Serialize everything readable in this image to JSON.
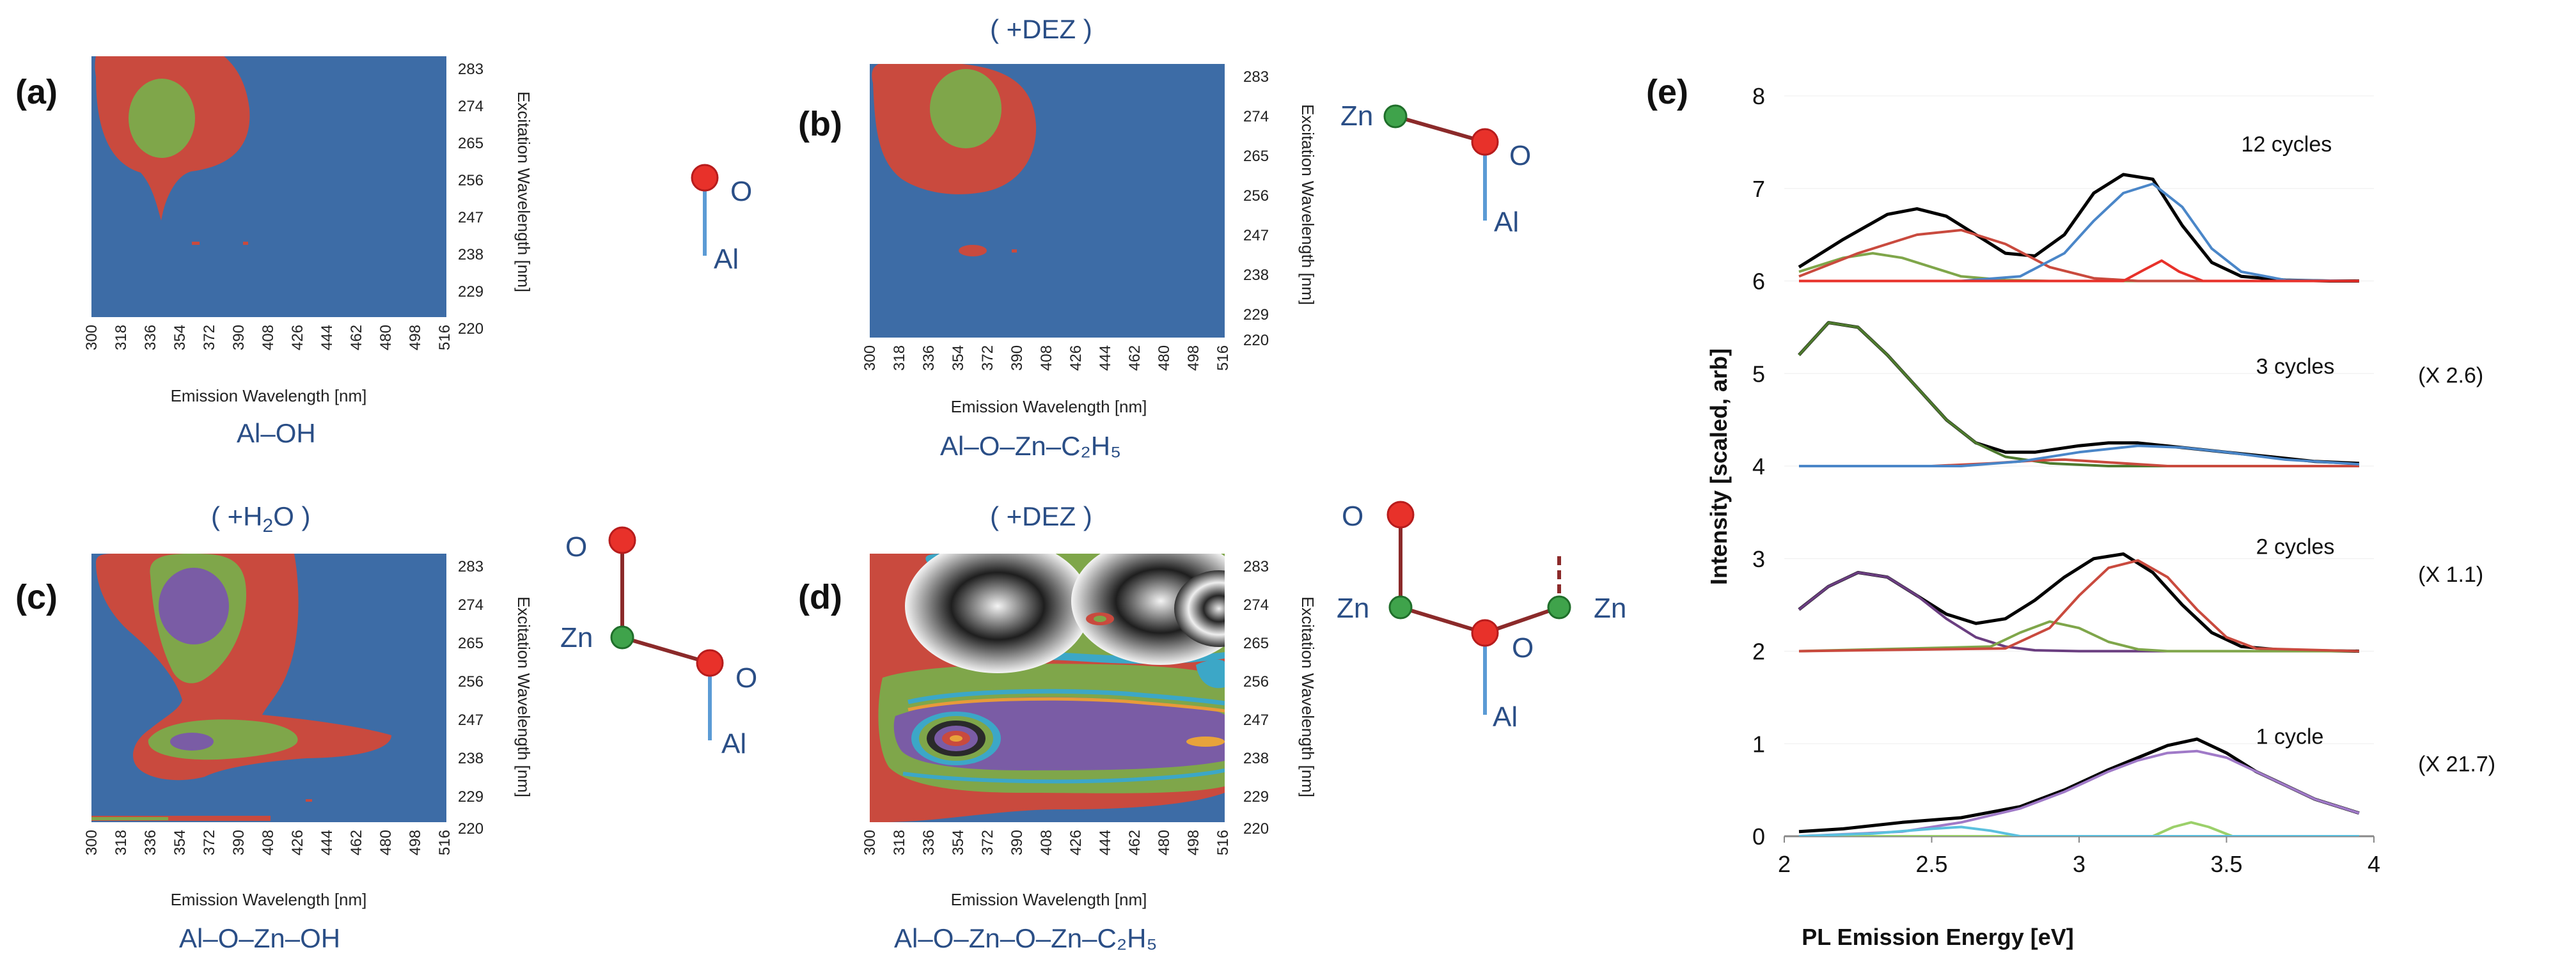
{
  "panels": [
    {
      "id": "a",
      "label": "(a)",
      "header": "",
      "header_sub": "",
      "header_end": "",
      "caption": "Al–OH",
      "atoms": [
        "O",
        "Al"
      ]
    },
    {
      "id": "b",
      "label": "(b)",
      "header": "( +DEZ )",
      "header_sub": "",
      "header_end": "",
      "caption": "Al–O–Zn–C₂H₅",
      "atoms": [
        "Zn",
        "O",
        "Al"
      ]
    },
    {
      "id": "c",
      "label": "(c)",
      "header": "( +H",
      "header_sub": "2",
      "header_end": "O )",
      "caption": "Al–O–Zn–OH",
      "atoms": [
        "O",
        "Zn",
        "O",
        "Al"
      ]
    },
    {
      "id": "d",
      "label": "(d)",
      "header": "( +DEZ )",
      "header_sub": "",
      "header_end": "",
      "caption": "Al–O–Zn–O–Zn–C₂H₅",
      "atoms": [
        "O",
        "Zn",
        "O",
        "Al",
        "Zn"
      ]
    }
  ],
  "heatmap_axes": {
    "x_label": "Emission Wavelength [nm]",
    "y_label": "Excitation Wavelength [nm]",
    "x_ticks": [
      "300",
      "318",
      "336",
      "354",
      "372",
      "390",
      "408",
      "426",
      "444",
      "462",
      "480",
      "498",
      "516"
    ],
    "y_ticks": [
      "283",
      "274",
      "265",
      "256",
      "247",
      "238",
      "229",
      "220"
    ]
  },
  "colors": {
    "bg": "#3d6ca6",
    "red": "#c94a3e",
    "green": "#7fa64a",
    "purple": "#7a5ca5",
    "atom_red": "#e8312a",
    "atom_green": "#3fa34b",
    "bond": "#8b2a2a",
    "bond_al": "#5b9bd5"
  },
  "chart_data": {
    "type": "line",
    "panel_label": "(e)",
    "xlabel": "PL Emission Energy [eV]",
    "ylabel": "Intensity [scaled, arb]",
    "xlim": [
      2,
      4
    ],
    "ylim": [
      0,
      8
    ],
    "x_ticks": [
      "2",
      "2.5",
      "3",
      "3.5",
      "4"
    ],
    "y_ticks": [
      "0",
      "1",
      "2",
      "3",
      "4",
      "5",
      "6",
      "7",
      "8"
    ],
    "annotations": [
      {
        "text": "12 cycles",
        "x": 3.55,
        "y": 7.4
      },
      {
        "text": "3 cycles",
        "x": 3.6,
        "y": 5.0
      },
      {
        "text": "(X 2.6)",
        "x": 4.15,
        "y": 4.9
      },
      {
        "text": "2 cycles",
        "x": 3.6,
        "y": 3.05
      },
      {
        "text": "(X 1.1)",
        "x": 4.15,
        "y": 2.75
      },
      {
        "text": "1 cycle",
        "x": 3.6,
        "y": 1.0
      },
      {
        "text": "(X 21.7)",
        "x": 4.15,
        "y": 0.7
      }
    ],
    "series": [
      {
        "name": "12 cycles total",
        "color": "#000000",
        "x": [
          2.05,
          2.2,
          2.35,
          2.45,
          2.55,
          2.65,
          2.75,
          2.85,
          2.95,
          3.05,
          3.15,
          3.25,
          3.35,
          3.45,
          3.55,
          3.7,
          3.85,
          3.95
        ],
        "y": [
          6.15,
          6.45,
          6.72,
          6.78,
          6.7,
          6.5,
          6.3,
          6.27,
          6.5,
          6.95,
          7.15,
          7.1,
          6.6,
          6.2,
          6.05,
          6.01,
          6.0,
          6.0
        ]
      },
      {
        "name": "12 cycles green",
        "color": "#7fa64a",
        "x": [
          2.05,
          2.2,
          2.3,
          2.4,
          2.5,
          2.6,
          2.75,
          2.9,
          3.1,
          3.95
        ],
        "y": [
          6.1,
          6.25,
          6.3,
          6.25,
          6.15,
          6.05,
          6.01,
          6.0,
          6.0,
          6.0
        ]
      },
      {
        "name": "12 cycles red",
        "color": "#c94a3e",
        "x": [
          2.05,
          2.25,
          2.45,
          2.6,
          2.75,
          2.9,
          3.05,
          3.2,
          3.95
        ],
        "y": [
          6.05,
          6.3,
          6.5,
          6.55,
          6.4,
          6.15,
          6.03,
          6.0,
          6.0
        ]
      },
      {
        "name": "12 cycles blue",
        "color": "#4a86c8",
        "x": [
          2.6,
          2.8,
          2.95,
          3.05,
          3.15,
          3.25,
          3.35,
          3.45,
          3.55,
          3.7,
          3.95
        ],
        "y": [
          6.0,
          6.05,
          6.3,
          6.65,
          6.95,
          7.05,
          6.8,
          6.35,
          6.1,
          6.01,
          6.0
        ]
      },
      {
        "name": "12 cycles red narrow",
        "color": "#e8312a",
        "x": [
          2.05,
          3.15,
          3.22,
          3.28,
          3.34,
          3.42,
          3.95
        ],
        "y": [
          6.0,
          6.0,
          6.12,
          6.22,
          6.1,
          6.0,
          6.0
        ]
      },
      {
        "name": "3 cycles total",
        "color": "#000000",
        "x": [
          2.05,
          2.15,
          2.25,
          2.35,
          2.45,
          2.55,
          2.65,
          2.75,
          2.85,
          3.0,
          3.1,
          3.2,
          3.35,
          3.5,
          3.65,
          3.8,
          3.95
        ],
        "y": [
          5.2,
          5.55,
          5.5,
          5.2,
          4.85,
          4.5,
          4.25,
          4.15,
          4.15,
          4.22,
          4.25,
          4.25,
          4.2,
          4.15,
          4.1,
          4.05,
          4.03
        ]
      },
      {
        "name": "3 cycles green",
        "color": "#4e7a2e",
        "x": [
          2.05,
          2.15,
          2.25,
          2.35,
          2.45,
          2.55,
          2.65,
          2.75,
          2.9,
          3.1,
          3.95
        ],
        "y": [
          5.2,
          5.55,
          5.5,
          5.2,
          4.85,
          4.5,
          4.25,
          4.1,
          4.03,
          4.0,
          4.0
        ]
      },
      {
        "name": "3 cycles red",
        "color": "#c94a3e",
        "x": [
          2.05,
          2.5,
          2.7,
          2.85,
          2.95,
          3.1,
          3.3,
          3.95
        ],
        "y": [
          4.0,
          4.0,
          4.03,
          4.06,
          4.07,
          4.04,
          4.0,
          4.0
        ]
      },
      {
        "name": "3 cycles blue",
        "color": "#4a86c8",
        "x": [
          2.05,
          2.6,
          2.8,
          3.0,
          3.2,
          3.35,
          3.5,
          3.7,
          3.95
        ],
        "y": [
          4.0,
          4.0,
          4.05,
          4.15,
          4.22,
          4.2,
          4.15,
          4.07,
          4.02
        ]
      },
      {
        "name": "2 cycles total",
        "color": "#000000",
        "x": [
          2.05,
          2.15,
          2.25,
          2.35,
          2.45,
          2.55,
          2.65,
          2.75,
          2.85,
          2.95,
          3.05,
          3.15,
          3.25,
          3.35,
          3.45,
          3.55,
          3.7,
          3.95
        ],
        "y": [
          2.45,
          2.7,
          2.85,
          2.8,
          2.6,
          2.4,
          2.3,
          2.35,
          2.55,
          2.8,
          3.0,
          3.05,
          2.85,
          2.5,
          2.2,
          2.05,
          2.01,
          2.0
        ]
      },
      {
        "name": "2 cycles purple",
        "color": "#6a3e80",
        "x": [
          2.05,
          2.15,
          2.25,
          2.35,
          2.45,
          2.55,
          2.65,
          2.75,
          2.85,
          3.0,
          3.95
        ],
        "y": [
          2.45,
          2.7,
          2.85,
          2.8,
          2.6,
          2.35,
          2.15,
          2.05,
          2.01,
          2.0,
          2.0
        ]
      },
      {
        "name": "2 cycles green",
        "color": "#7fa64a",
        "x": [
          2.05,
          2.7,
          2.8,
          2.9,
          3.0,
          3.1,
          3.2,
          3.3,
          3.95
        ],
        "y": [
          2.0,
          2.05,
          2.2,
          2.32,
          2.25,
          2.1,
          2.02,
          2.0,
          2.0
        ]
      },
      {
        "name": "2 cycles red",
        "color": "#c94a3e",
        "x": [
          2.05,
          2.75,
          2.9,
          3.0,
          3.1,
          3.2,
          3.3,
          3.4,
          3.5,
          3.6,
          3.95
        ],
        "y": [
          2.0,
          2.03,
          2.25,
          2.6,
          2.9,
          2.98,
          2.8,
          2.45,
          2.15,
          2.03,
          2.0
        ]
      },
      {
        "name": "1 cycle total",
        "color": "#000000",
        "x": [
          2.05,
          2.2,
          2.4,
          2.6,
          2.8,
          2.95,
          3.1,
          3.2,
          3.3,
          3.4,
          3.5,
          3.6,
          3.7,
          3.8,
          3.95
        ],
        "y": [
          0.05,
          0.08,
          0.15,
          0.2,
          0.32,
          0.5,
          0.72,
          0.85,
          0.98,
          1.05,
          0.9,
          0.7,
          0.55,
          0.4,
          0.25
        ]
      },
      {
        "name": "1 cycle purple",
        "color": "#a07ac8",
        "x": [
          2.05,
          2.4,
          2.6,
          2.8,
          2.95,
          3.1,
          3.2,
          3.3,
          3.4,
          3.5,
          3.6,
          3.7,
          3.8,
          3.95
        ],
        "y": [
          0.0,
          0.05,
          0.15,
          0.3,
          0.48,
          0.7,
          0.82,
          0.9,
          0.92,
          0.85,
          0.7,
          0.55,
          0.4,
          0.25
        ]
      },
      {
        "name": "1 cycle green",
        "color": "#9bd06a",
        "x": [
          2.05,
          3.25,
          3.32,
          3.38,
          3.44,
          3.52,
          3.95
        ],
        "y": [
          0.0,
          0.0,
          0.1,
          0.15,
          0.1,
          0.0,
          0.0
        ]
      },
      {
        "name": "1 cycle cyan",
        "color": "#5bc0de",
        "x": [
          2.05,
          2.3,
          2.5,
          2.6,
          2.7,
          2.8,
          3.95
        ],
        "y": [
          0.0,
          0.03,
          0.08,
          0.1,
          0.06,
          0.0,
          0.0
        ]
      }
    ]
  }
}
